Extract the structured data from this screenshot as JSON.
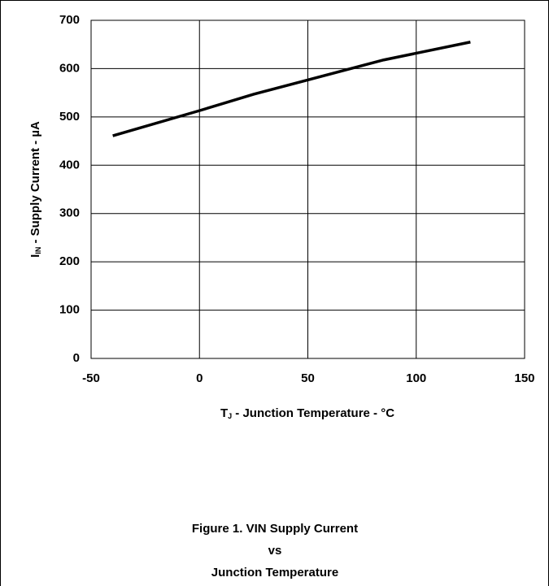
{
  "chart_data": {
    "type": "line",
    "x": [
      -40,
      0,
      25,
      85,
      125
    ],
    "values": [
      461,
      513,
      547,
      618,
      655
    ],
    "color": "#000000",
    "xlim": [
      -50,
      150
    ],
    "xticks": [
      -50,
      0,
      50,
      100,
      150
    ],
    "ylim": [
      0,
      700
    ],
    "yticks": [
      0,
      100,
      200,
      300,
      400,
      500,
      600,
      700
    ],
    "grid": true,
    "x_label": {
      "main": "T",
      "sub": "J",
      "rest": " - Junction Temperature - °C"
    },
    "y_label": {
      "main": "I",
      "sub": "IN",
      "rest": " - Supply Current - µA"
    },
    "caption": [
      "Figure 1. VIN Supply Current",
      "vs",
      "Junction Temperature"
    ]
  }
}
